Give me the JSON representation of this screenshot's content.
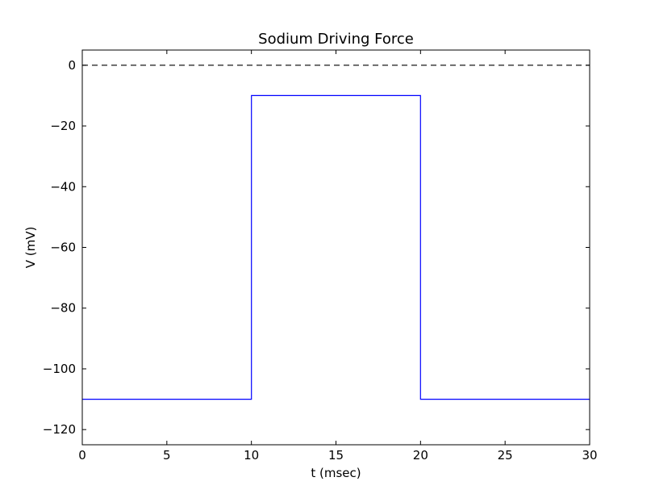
{
  "chart_data": {
    "type": "line",
    "title": "Sodium Driving Force",
    "xlabel": "t (msec)",
    "ylabel": "V (mV)",
    "xlim": [
      0,
      30
    ],
    "ylim": [
      -125,
      5
    ],
    "xticks": [
      0,
      5,
      10,
      15,
      20,
      25,
      30
    ],
    "xtick_labels": [
      "0",
      "5",
      "10",
      "15",
      "20",
      "25",
      "30"
    ],
    "yticks": [
      0,
      -20,
      -40,
      -60,
      -80,
      -100,
      -120
    ],
    "ytick_labels": [
      "0",
      "−20",
      "−40",
      "−60",
      "−80",
      "−100",
      "−120"
    ],
    "grid": false,
    "series": [
      {
        "color": "#0000ff",
        "style": "solid",
        "x": [
          0,
          10,
          10,
          20,
          20,
          30
        ],
        "y": [
          -110,
          -110,
          -10,
          -10,
          -110,
          -110
        ]
      },
      {
        "color": "#000000",
        "style": "dashed",
        "x": [
          0,
          30
        ],
        "y": [
          0,
          0
        ]
      }
    ]
  }
}
